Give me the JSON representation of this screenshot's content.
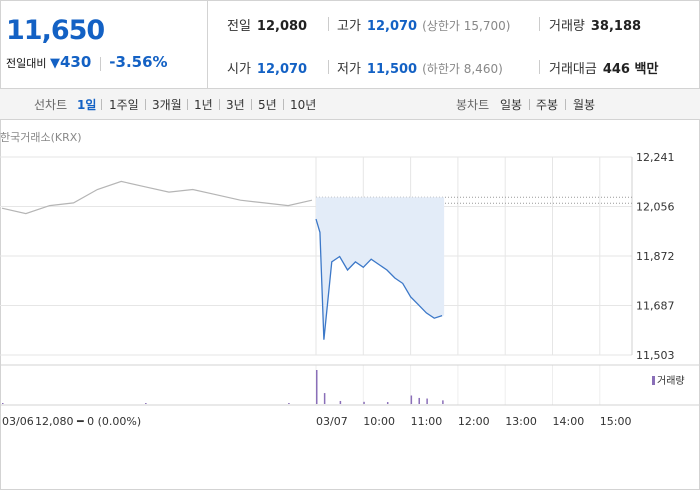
{
  "header": {
    "current_price": "11,650",
    "change_label": "전일대비",
    "change_arrow": "▼",
    "change_value": "430",
    "change_rate": "-3.56%",
    "prev_close": {
      "label": "전일",
      "value": "12,080"
    },
    "open": {
      "label": "시가",
      "value": "12,070"
    },
    "high": {
      "label": "고가",
      "value": "12,070",
      "limit_label": "상한가",
      "limit_value": "15,700"
    },
    "low": {
      "label": "저가",
      "value": "11,500",
      "limit_label": "하한가",
      "limit_value": "8,460"
    },
    "volume": {
      "label": "거래량",
      "value": "38,188"
    },
    "trade_amount": {
      "label": "거래대금",
      "value": "446 백만"
    }
  },
  "toolbar": {
    "line_chart_label": "선차트",
    "line_periods": [
      "1일",
      "1주일",
      "3개월",
      "1년",
      "3년",
      "5년",
      "10년"
    ],
    "active_period": "1일",
    "candle_chart_label": "봉차트",
    "candle_periods": [
      "일봉",
      "주봉",
      "월봉"
    ]
  },
  "exchange_label": "한국거래소(KRX)",
  "volume_legend": "거래량",
  "footer": {
    "prev_date": "03/06",
    "prev_summary": "12,080 ━ 0 (0.00%)"
  },
  "colors": {
    "accent_blue": "#1361c4",
    "line_prev": "#b5b5b5",
    "line_today": "#3c78c8",
    "fill_today": "#e3ecf8",
    "volume_bar": "#8a6fb8"
  },
  "chart_data": {
    "type": "line",
    "y_ticks": [
      "12,241",
      "12,056",
      "11,872",
      "11,687",
      "11,503"
    ],
    "ylim": [
      11503,
      12241
    ],
    "x_ticks": [
      "03/07",
      "10:00",
      "11:00",
      "12:00",
      "13:00",
      "14:00",
      "15:00"
    ],
    "reference_line": 12080,
    "series": [
      {
        "name": "03/06",
        "x": [
          "03/06 09:00",
          "03/06 09:30",
          "03/06 10:00",
          "03/06 10:30",
          "03/06 11:00",
          "03/06 11:30",
          "03/06 12:00",
          "03/06 12:30",
          "03/06 13:00",
          "03/06 13:30",
          "03/06 14:00",
          "03/06 14:30",
          "03/06 15:00",
          "03/06 15:30"
        ],
        "values": [
          12050,
          12030,
          12060,
          12070,
          12120,
          12150,
          12130,
          12110,
          12120,
          12100,
          12080,
          12070,
          12060,
          12080
        ]
      },
      {
        "name": "03/07",
        "x": [
          "09:00",
          "09:05",
          "09:10",
          "09:20",
          "09:30",
          "09:40",
          "09:50",
          "10:00",
          "10:10",
          "10:20",
          "10:30",
          "10:40",
          "10:50",
          "11:00",
          "11:10",
          "11:20",
          "11:30",
          "11:40"
        ],
        "values": [
          12010,
          11960,
          11560,
          11850,
          11870,
          11820,
          11850,
          11830,
          11860,
          11840,
          11820,
          11790,
          11770,
          11720,
          11690,
          11660,
          11640,
          11650
        ]
      }
    ],
    "volume": {
      "x": [
        "03/06 09:00",
        "03/06 12:00",
        "03/06 15:00",
        "09:00",
        "09:10",
        "09:30",
        "10:00",
        "10:30",
        "11:00",
        "11:10",
        "11:20",
        "11:40"
      ],
      "values": [
        20,
        8,
        30,
        2800,
        900,
        250,
        180,
        160,
        700,
        500,
        450,
        300
      ]
    }
  }
}
